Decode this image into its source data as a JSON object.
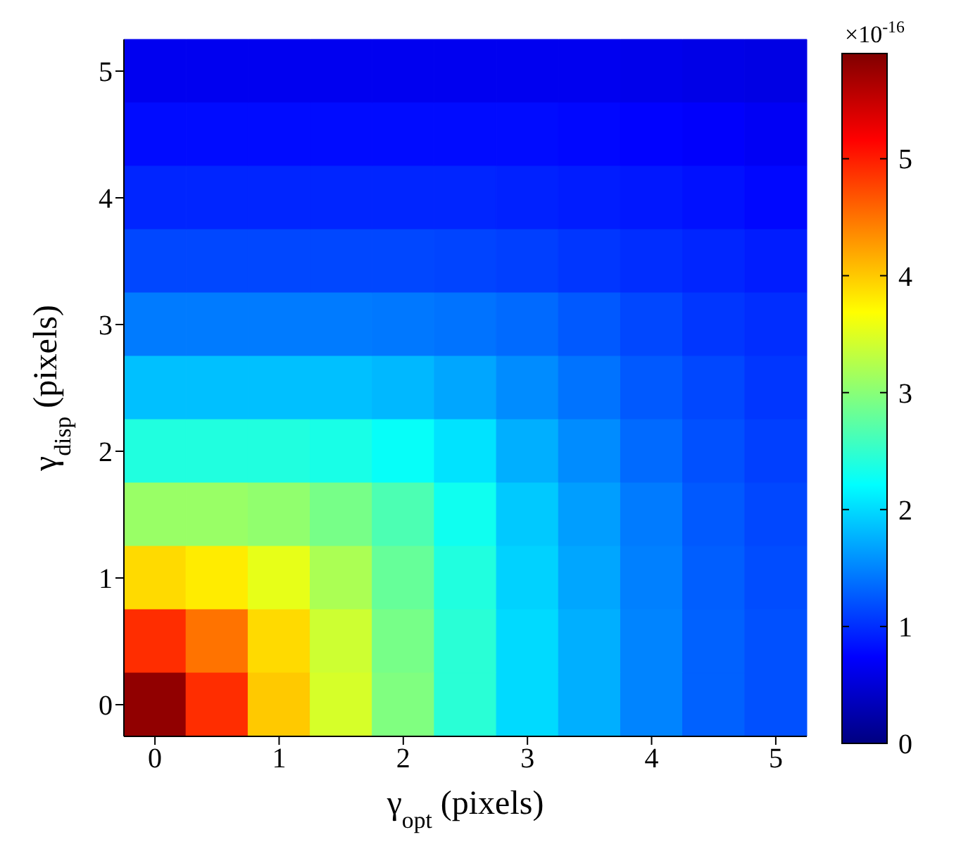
{
  "chart_data": {
    "type": "heatmap",
    "xlabel": "γ$_{opt}$ (pixels)",
    "ylabel": "γ$_{disp}$ (pixels)",
    "clabel": "×10$^{-16}$",
    "categories": [
      "0",
      null,
      "1",
      null,
      "2",
      null,
      "3",
      null,
      "4",
      null,
      "5"
    ],
    "y_categories": [
      "5",
      null,
      "4",
      null,
      "3",
      null,
      "2",
      null,
      "1",
      null,
      "0"
    ],
    "clim": [
      0,
      5.9
    ],
    "cticks": [
      0,
      1,
      2,
      3,
      4,
      5
    ],
    "cells": [
      [
        0.65,
        0.65,
        0.65,
        0.65,
        0.65,
        0.65,
        0.65,
        0.65,
        0.62,
        0.6,
        0.58
      ],
      [
        0.8,
        0.8,
        0.8,
        0.8,
        0.8,
        0.8,
        0.8,
        0.78,
        0.75,
        0.72,
        0.68
      ],
      [
        0.95,
        0.95,
        0.95,
        0.95,
        0.95,
        0.95,
        0.93,
        0.9,
        0.87,
        0.83,
        0.78
      ],
      [
        1.15,
        1.15,
        1.15,
        1.15,
        1.15,
        1.13,
        1.1,
        1.05,
        1.0,
        0.95,
        0.9
      ],
      [
        1.45,
        1.45,
        1.45,
        1.45,
        1.43,
        1.4,
        1.35,
        1.25,
        1.15,
        1.05,
        1.0
      ],
      [
        1.85,
        1.85,
        1.85,
        1.85,
        1.8,
        1.7,
        1.55,
        1.4,
        1.25,
        1.15,
        1.05
      ],
      [
        2.4,
        2.4,
        2.4,
        2.35,
        2.25,
        2.05,
        1.75,
        1.55,
        1.35,
        1.2,
        1.1
      ],
      [
        3.1,
        3.1,
        3.05,
        2.9,
        2.65,
        2.3,
        1.9,
        1.65,
        1.45,
        1.25,
        1.15
      ],
      [
        3.9,
        3.8,
        3.55,
        3.2,
        2.8,
        2.4,
        1.95,
        1.7,
        1.48,
        1.28,
        1.18
      ],
      [
        4.9,
        4.5,
        3.9,
        3.4,
        2.9,
        2.45,
        2.0,
        1.75,
        1.5,
        1.3,
        1.2
      ],
      [
        5.8,
        4.9,
        4.0,
        3.45,
        2.95,
        2.45,
        2.0,
        1.75,
        1.5,
        1.3,
        1.2
      ]
    ]
  }
}
